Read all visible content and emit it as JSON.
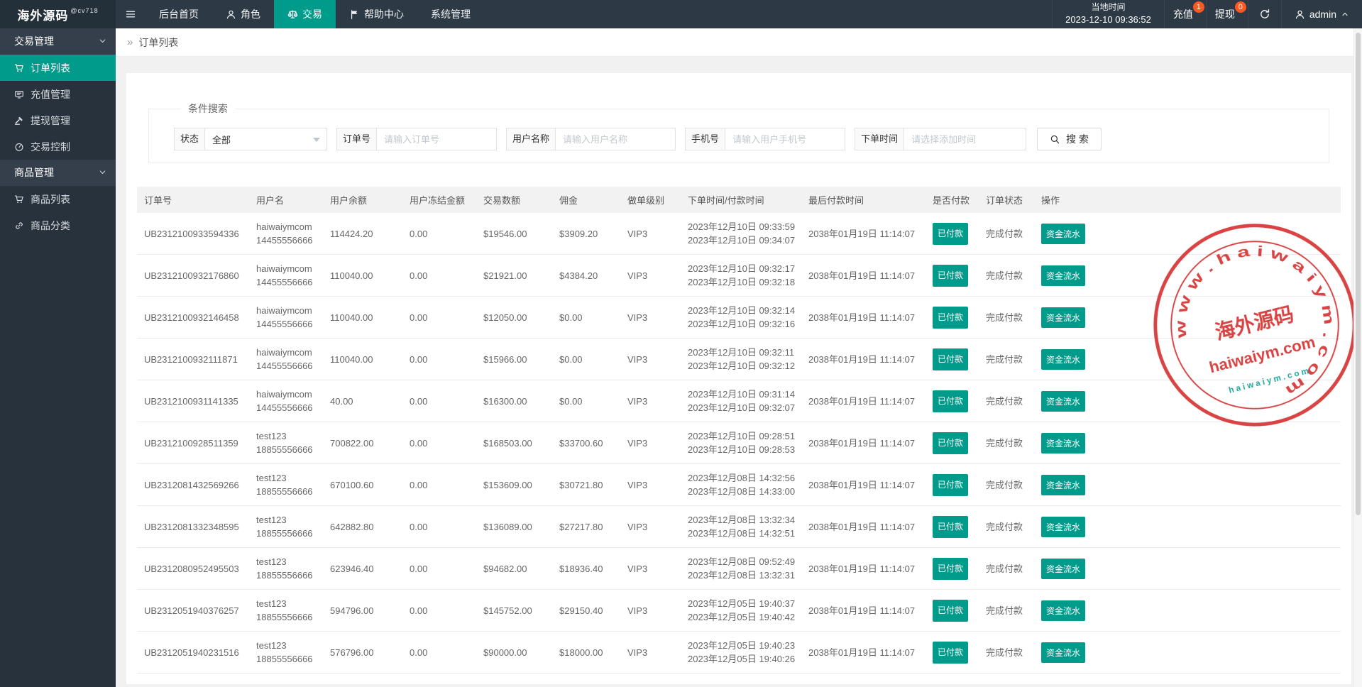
{
  "brand": {
    "name": "海外源码",
    "sub": "@cv718"
  },
  "navbar": {
    "menu": [
      {
        "key": "home",
        "label": "后台首页",
        "icon": null,
        "active": false
      },
      {
        "key": "roles",
        "label": "角色",
        "icon": "user-icon",
        "active": false
      },
      {
        "key": "trade",
        "label": "交易",
        "icon": "scales-icon",
        "active": true
      },
      {
        "key": "help",
        "label": "帮助中心",
        "icon": "flag-icon",
        "active": false
      },
      {
        "key": "system",
        "label": "系统管理",
        "icon": null,
        "active": false
      }
    ],
    "local_time_label": "当地时间",
    "local_time": "2023-12-10 09:36:52",
    "recharge": {
      "label": "充值",
      "badge": "1"
    },
    "withdraw": {
      "label": "提现",
      "badge": "0"
    },
    "admin": {
      "label": "admin"
    }
  },
  "sidebar": {
    "sections": [
      {
        "key": "trade-mgmt",
        "title": "交易管理",
        "items": [
          {
            "key": "order-list",
            "label": "订单列表",
            "icon": "cart-icon",
            "active": true
          },
          {
            "key": "recharge-mgmt",
            "label": "充值管理",
            "icon": "board-icon",
            "active": false
          },
          {
            "key": "withdraw-mgmt",
            "label": "提现管理",
            "icon": "gavel-icon",
            "active": false
          },
          {
            "key": "trade-control",
            "label": "交易控制",
            "icon": "gauge-icon",
            "active": false
          }
        ]
      },
      {
        "key": "goods-mgmt",
        "title": "商品管理",
        "items": [
          {
            "key": "goods-list",
            "label": "商品列表",
            "icon": "cart-icon",
            "active": false
          },
          {
            "key": "goods-category",
            "label": "商品分类",
            "icon": "link-icon",
            "active": false
          }
        ]
      }
    ]
  },
  "breadcrumb": {
    "arrow": "»",
    "title": "订单列表"
  },
  "search": {
    "legend": "条件搜索",
    "fields": [
      {
        "key": "status",
        "label": "状态",
        "type": "select",
        "value": "全部"
      },
      {
        "key": "order-no",
        "label": "订单号",
        "type": "input",
        "placeholder": "请输入订单号",
        "width": 170
      },
      {
        "key": "username",
        "label": "用户名称",
        "type": "input",
        "placeholder": "请输入用户名称",
        "width": 170
      },
      {
        "key": "phone",
        "label": "手机号",
        "type": "input",
        "placeholder": "请输入用户手机号",
        "width": 170
      },
      {
        "key": "order-time",
        "label": "下单时间",
        "type": "input",
        "placeholder": "请选择添加时间",
        "width": 173
      }
    ],
    "button_label": "搜 索"
  },
  "table": {
    "headers": [
      "订单号",
      "用户名",
      "用户余额",
      "用户冻结金额",
      "交易数额",
      "佣金",
      "做单级别",
      "下单时间/付款时间",
      "最后付款时间",
      "是否付款",
      "订单状态",
      "操作"
    ],
    "rows": [
      {
        "order_no": "UB2312100933594336",
        "username": "haiwaiymcom",
        "phone": "14455556666",
        "balance": "114424.20",
        "frozen": "0.00",
        "amount": "$19546.00",
        "commission": "$3909.20",
        "level": "VIP3",
        "order_time": "2023年12月10日 09:33:59",
        "pay_time": "2023年12月10日 09:34:07",
        "last_pay_time": "2038年01月19日 11:14:07",
        "paid": "已付款",
        "status": "完成付款",
        "action": "资金流水"
      },
      {
        "order_no": "UB2312100932176860",
        "username": "haiwaiymcom",
        "phone": "14455556666",
        "balance": "110040.00",
        "frozen": "0.00",
        "amount": "$21921.00",
        "commission": "$4384.20",
        "level": "VIP3",
        "order_time": "2023年12月10日 09:32:17",
        "pay_time": "2023年12月10日 09:32:18",
        "last_pay_time": "2038年01月19日 11:14:07",
        "paid": "已付款",
        "status": "完成付款",
        "action": "资金流水"
      },
      {
        "order_no": "UB2312100932146458",
        "username": "haiwaiymcom",
        "phone": "14455556666",
        "balance": "110040.00",
        "frozen": "0.00",
        "amount": "$12050.00",
        "commission": "$0.00",
        "level": "VIP3",
        "order_time": "2023年12月10日 09:32:14",
        "pay_time": "2023年12月10日 09:32:16",
        "last_pay_time": "2038年01月19日 11:14:07",
        "paid": "已付款",
        "status": "完成付款",
        "action": "资金流水"
      },
      {
        "order_no": "UB2312100932111871",
        "username": "haiwaiymcom",
        "phone": "14455556666",
        "balance": "110040.00",
        "frozen": "0.00",
        "amount": "$15966.00",
        "commission": "$0.00",
        "level": "VIP3",
        "order_time": "2023年12月10日 09:32:11",
        "pay_time": "2023年12月10日 09:32:12",
        "last_pay_time": "2038年01月19日 11:14:07",
        "paid": "已付款",
        "status": "完成付款",
        "action": "资金流水"
      },
      {
        "order_no": "UB2312100931141335",
        "username": "haiwaiymcom",
        "phone": "14455556666",
        "balance": "40.00",
        "frozen": "0.00",
        "amount": "$16300.00",
        "commission": "$0.00",
        "level": "VIP3",
        "order_time": "2023年12月10日 09:31:14",
        "pay_time": "2023年12月10日 09:32:07",
        "last_pay_time": "2038年01月19日 11:14:07",
        "paid": "已付款",
        "status": "完成付款",
        "action": "资金流水"
      },
      {
        "order_no": "UB2312100928511359",
        "username": "test123",
        "phone": "18855556666",
        "balance": "700822.00",
        "frozen": "0.00",
        "amount": "$168503.00",
        "commission": "$33700.60",
        "level": "VIP3",
        "order_time": "2023年12月10日 09:28:51",
        "pay_time": "2023年12月10日 09:28:53",
        "last_pay_time": "2038年01月19日 11:14:07",
        "paid": "已付款",
        "status": "完成付款",
        "action": "资金流水"
      },
      {
        "order_no": "UB2312081432569266",
        "username": "test123",
        "phone": "18855556666",
        "balance": "670100.60",
        "frozen": "0.00",
        "amount": "$153609.00",
        "commission": "$30721.80",
        "level": "VIP3",
        "order_time": "2023年12月08日 14:32:56",
        "pay_time": "2023年12月08日 14:33:00",
        "last_pay_time": "2038年01月19日 11:14:07",
        "paid": "已付款",
        "status": "完成付款",
        "action": "资金流水"
      },
      {
        "order_no": "UB2312081332348595",
        "username": "test123",
        "phone": "18855556666",
        "balance": "642882.80",
        "frozen": "0.00",
        "amount": "$136089.00",
        "commission": "$27217.80",
        "level": "VIP3",
        "order_time": "2023年12月08日 13:32:34",
        "pay_time": "2023年12月08日 14:32:51",
        "last_pay_time": "2038年01月19日 11:14:07",
        "paid": "已付款",
        "status": "完成付款",
        "action": "资金流水"
      },
      {
        "order_no": "UB2312080952495503",
        "username": "test123",
        "phone": "18855556666",
        "balance": "623946.40",
        "frozen": "0.00",
        "amount": "$94682.00",
        "commission": "$18936.40",
        "level": "VIP3",
        "order_time": "2023年12月08日 09:52:49",
        "pay_time": "2023年12月08日 13:32:31",
        "last_pay_time": "2038年01月19日 11:14:07",
        "paid": "已付款",
        "status": "完成付款",
        "action": "资金流水"
      },
      {
        "order_no": "UB2312051940376257",
        "username": "test123",
        "phone": "18855556666",
        "balance": "594796.00",
        "frozen": "0.00",
        "amount": "$145752.00",
        "commission": "$29150.40",
        "level": "VIP3",
        "order_time": "2023年12月05日 19:40:37",
        "pay_time": "2023年12月05日 19:40:42",
        "last_pay_time": "2038年01月19日 11:14:07",
        "paid": "已付款",
        "status": "完成付款",
        "action": "资金流水"
      },
      {
        "order_no": "UB2312051940231516",
        "username": "test123",
        "phone": "18855556666",
        "balance": "576796.00",
        "frozen": "0.00",
        "amount": "$90000.00",
        "commission": "$18000.00",
        "level": "VIP3",
        "order_time": "2023年12月05日 19:40:23",
        "pay_time": "2023年12月05日 19:40:26",
        "last_pay_time": "2038年01月19日 11:14:07",
        "paid": "已付款",
        "status": "完成付款",
        "action": "资金流水"
      }
    ]
  },
  "stamp": {
    "ring_text": "w w w . h a i w a i y m . c o m",
    "center_text": "海外源码",
    "domain_text": "haiwaiym.com",
    "small_text": "h a i w a i y m . c o m"
  },
  "colors": {
    "accent": "#009b8a",
    "badge": "#ff5722",
    "stamp_red": "#d42a2a",
    "watermark_teal": "#009b8a"
  }
}
